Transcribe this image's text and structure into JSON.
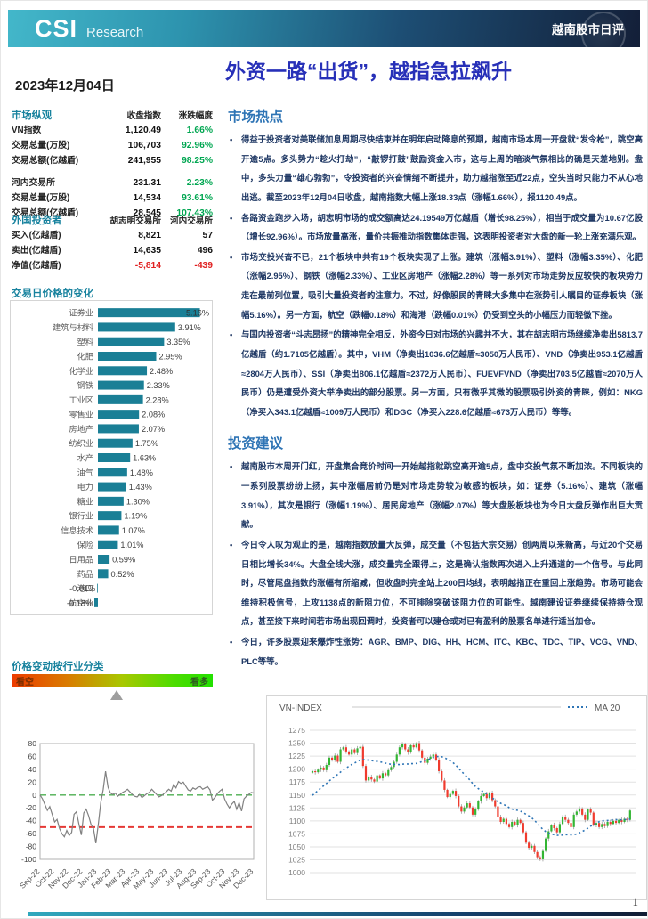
{
  "header": {
    "brand": "CSI",
    "brand_sub": "Research",
    "banner_right": "越南股市日评",
    "date": "2023年12月04日",
    "title": "外资一路“出货”，越指急拉飙升"
  },
  "market_overview": {
    "heading": "市场纵观",
    "col_headers": [
      "收盘指数",
      "涨跌幅度"
    ],
    "groups": [
      [
        {
          "label": "VN指数",
          "value": "1,120.49",
          "change": "1.66%"
        },
        {
          "label": "交易总量(万股)",
          "value": "106,703",
          "change": "92.96%"
        },
        {
          "label": "交易总额(亿越盾)",
          "value": "241,955",
          "change": "98.25%"
        }
      ],
      [
        {
          "label": "河内交易所",
          "value": "231.31",
          "change": "2.23%"
        },
        {
          "label": "交易总量(万股)",
          "value": "14,534",
          "change": "93.61%"
        },
        {
          "label": "交易总额(亿越盾)",
          "value": "28,545",
          "change": "107.43%"
        }
      ]
    ]
  },
  "foreign_investors": {
    "heading": "外国投资者",
    "col_headers": [
      "胡志明交易所",
      "河内交易所"
    ],
    "rows": [
      {
        "label": "买入(亿越盾)",
        "hose": "8,821",
        "hnx": "57"
      },
      {
        "label": "卖出(亿越盾)",
        "hose": "14,635",
        "hnx": "496"
      },
      {
        "label": "净值(亿越盾)",
        "hose": "-5,814",
        "hnx": "-439"
      }
    ]
  },
  "sector_section": {
    "heading": "交易日价格的变化"
  },
  "sentiment": {
    "heading": "价格变动按行业分类",
    "left_label": "看空",
    "right_label": "看多",
    "marker_pos": 0.52
  },
  "market_highlights": {
    "heading": "市场热点",
    "bullets": [
      "得益于投资者对美联储加息周期尽快结束并在明年启动降息的预期，越南市场本周一开盘就“发令枪”，跳空高开逾5点。多头势力“趁火打劫”，“敲锣打鼓”鼓励资金入市，这与上周的暗淡气氛相比的确是天差地别。盘中，多头力量“雄心勃勃”，令投资者的兴奋情绪不断提升，助力越指涨至近22点，空头当时只能力不从心地出逃。截至2023年12月04日收盘，越南指数大幅上涨18.33点（涨幅1.66%），报1120.49点。",
      "各路资金跑步入场，胡志明市场的成交额高达24.19549万亿越盾（增长98.25%），相当于成交量为10.67亿股（增长92.96%）。市场放量高涨，量价共振推动指数集体走强，这表明投资者对大盘的新一轮上涨充满乐观。",
      "市场交投兴奋不已，21个板块中共有19个板块实现了上涨。建筑（涨幅3.91%）、塑料（涨幅3.35%）、化肥（涨幅2.95%）、钢铁（涨幅2.33%）、工业区房地产（涨幅2.28%）等一系列对市场走势反应较快的板块势力走在最前列位置，吸引大量投资者的注意力。不过，好像股民的青睐大多集中在涨势引人瞩目的证券板块（涨幅5.16%）。另一方面，航空（跌幅0.18%）和海港（跌幅0.01%）仍受到空头的小幅压力而轻微下挫。",
      "与国内投资者“斗志昂扬”的精神完全相反，外资今日对市场的兴趣并不大，其在胡志明市场继续净卖出5813.7亿越盾（约1.7105亿越盾）。其中，VHM（净卖出1036.6亿越盾≈3050万人民币）、VND（净卖出953.1亿越盾≈2804万人民币）、SSI（净卖出806.1亿越盾≈2372万人民币）、FUEVFVND（净卖出703.5亿越盾≈2070万人民币）仍是遭受外资大举净卖出的部分股票。另一方面，只有微乎其微的股票吸引外资的青睐，例如：NKG（净买入343.1亿越盾≈1009万人民币）和DGC（净买入228.6亿越盾≈673万人民币）等等。"
    ]
  },
  "investment_advice": {
    "heading": "投资建议",
    "bullets": [
      "越南股市本周开门红，开盘集合竞价时间一开始越指就跳空高开逾5点，盘中交投气氛不断加浓。不同板块的一系列股票纷纷上扬，其中涨幅居前仍是对市场走势较为敏感的板块，如：证券（5.16%）、建筑（涨幅3.91%），其次是银行（涨幅1.19%）、居民房地产（涨幅2.07%）等大盘股板块也为今日大盘反弹作出巨大贡献。",
      "今日令人叹为观止的是，越南指数放量大反弹，成交量（不包括大宗交易）创两周以来新高，与近20个交易日相比增长34%。大盘全线大涨，成交量完全跟得上，这是确认指数再次进入上升通道的一个信号。与此同时，尽管尾盘指数的涨幅有所缩减，但收盘时完全站上200日均线，表明越指正在重回上涨趋势。市场可能会维持积极信号，上攻1138点的新阻力位，不可排除突破该阻力位的可能性。越南建设证券继续保持持仓观点，甚至接下来时间若市场出现回调时，投资者可以建仓或对已有盈利的股票名单进行适当加仓。",
      "今日，许多股票迎来爆炸性涨势：AGR、BMP、DIG、HH、HCM、ITC、KBC、TDC、TIP、VCG、VND、PLC等等。"
    ]
  },
  "footer": {
    "page_number": "1"
  },
  "colors": {
    "accent_teal": "#17829e",
    "heading_blue": "#2e74b5",
    "title_blue": "#2730b8",
    "body_text": "#1f3864",
    "positive": "#00a651",
    "negative": "#e02020",
    "bar": "#1a7f96",
    "candle_up": "#33b533",
    "candle_down": "#f03b2e",
    "ma_line": "#2e75b6"
  },
  "chart_data": [
    {
      "type": "bar",
      "orientation": "horizontal",
      "title": "交易日价格的变化",
      "unit": "%",
      "categories": [
        "证券业",
        "建筑与材料",
        "塑料",
        "化肥",
        "化学业",
        "钢铁",
        "工业区",
        "零售业",
        "房地产",
        "纺织业",
        "水产",
        "油气",
        "电力",
        "糖业",
        "银行业",
        "信息技术",
        "保险",
        "日用品",
        "药品",
        "港口",
        "航空业"
      ],
      "values": [
        5.16,
        3.91,
        3.35,
        2.95,
        2.48,
        2.33,
        2.28,
        2.08,
        2.07,
        1.75,
        1.63,
        1.48,
        1.43,
        1.3,
        1.19,
        1.07,
        1.01,
        0.59,
        0.52,
        -0.01,
        -0.18
      ]
    },
    {
      "type": "line",
      "title": "",
      "ylim": [
        -100,
        80
      ],
      "y_ticks": [
        80,
        60,
        40,
        20,
        0,
        -20,
        -40,
        -60,
        -80,
        -100
      ],
      "x_labels": [
        "Sep-22",
        "Oct-22",
        "Nov-22",
        "Dec-22",
        "Jan-23",
        "Feb-23",
        "Mar-23",
        "Apr-23",
        "May-23",
        "Jun-23",
        "Jul-23",
        "Aug-23",
        "Sep-23",
        "Oct-23",
        "Nov-23",
        "Dec-23"
      ],
      "ref_lines": [
        {
          "value": 0,
          "color": "#4caf50"
        },
        {
          "value": -50,
          "color": "#e53935"
        }
      ],
      "values": [
        0,
        -6,
        -15,
        -24,
        -18,
        -30,
        -42,
        -38,
        -52,
        -60,
        -65,
        -55,
        -63,
        -58,
        -30,
        -26,
        -45,
        -62,
        -28,
        -22,
        -32,
        -46,
        -52,
        -75,
        -45,
        -12,
        8,
        37,
        12,
        3,
        1,
        3,
        -2,
        1,
        4,
        6,
        9,
        5,
        1,
        -2,
        -3,
        1,
        -4,
        -1,
        2,
        4,
        9,
        5,
        1,
        -3,
        -1,
        2,
        5,
        9,
        6,
        16,
        11,
        21,
        18,
        20,
        14,
        8,
        6,
        11,
        9,
        12,
        13,
        9,
        11,
        13,
        8,
        -8,
        -4,
        2,
        6,
        9,
        -6,
        -14,
        -20,
        -14,
        -10,
        -22,
        -12,
        -25,
        -6,
        -2,
        1,
        4,
        3
      ]
    },
    {
      "type": "candlestick",
      "title": "VN-INDEX",
      "legend": {
        "series": "VN-INDEX",
        "ma": "MA 20"
      },
      "ylim": [
        1000,
        1275
      ],
      "y_ticks": [
        1275,
        1250,
        1225,
        1200,
        1175,
        1150,
        1125,
        1100,
        1075,
        1050,
        1025,
        1000
      ],
      "ma_window": 20,
      "pre_values": [
        1100,
        1104,
        1108,
        1112,
        1118,
        1124,
        1130,
        1136,
        1142,
        1148,
        1154,
        1160,
        1165,
        1170,
        1175,
        1180,
        1184,
        1188,
        1192
      ],
      "closes": [
        1196,
        1194,
        1199,
        1203,
        1198,
        1208,
        1222,
        1218,
        1226,
        1214,
        1238,
        1242,
        1234,
        1228,
        1238,
        1231,
        1240,
        1243,
        1206,
        1178,
        1185,
        1180,
        1176,
        1188,
        1182,
        1192,
        1188,
        1198,
        1204,
        1214,
        1228,
        1242,
        1248,
        1238,
        1232,
        1246,
        1242,
        1250,
        1236,
        1222,
        1212,
        1220,
        1224,
        1228,
        1218,
        1196,
        1178,
        1160,
        1146,
        1152,
        1158,
        1148,
        1128,
        1118,
        1126,
        1134,
        1126,
        1112,
        1122,
        1138,
        1148,
        1152,
        1144,
        1154,
        1140,
        1128,
        1108,
        1098,
        1104,
        1094,
        1088,
        1098,
        1092,
        1102,
        1096,
        1078,
        1058,
        1048,
        1052,
        1040,
        1030,
        1026,
        1042,
        1066,
        1080,
        1092,
        1086,
        1078,
        1094,
        1108,
        1102,
        1096,
        1088,
        1112,
        1118,
        1124,
        1112,
        1102,
        1122,
        1116,
        1092,
        1096,
        1088,
        1094,
        1090,
        1098,
        1094,
        1100,
        1096,
        1102,
        1098,
        1104,
        1102,
        1120
      ]
    }
  ]
}
